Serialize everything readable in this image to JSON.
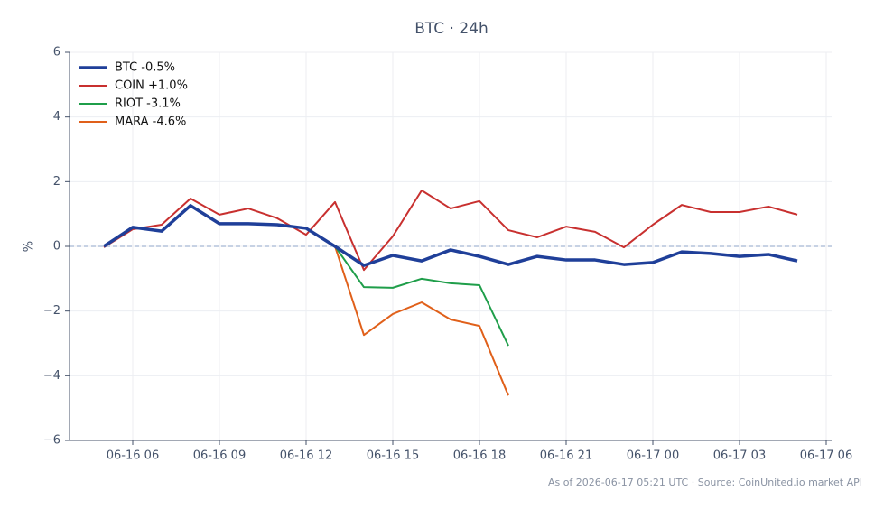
{
  "chart_data": {
    "type": "line",
    "title": "BTC · 24h",
    "ylabel": "%",
    "footnote": "As of 2026-06-17 05:21 UTC · Source: CoinUnited.io market API",
    "x": [
      "06-16 05",
      "06-16 06",
      "06-16 07",
      "06-16 08",
      "06-16 09",
      "06-16 10",
      "06-16 11",
      "06-16 12",
      "06-16 13",
      "06-16 14",
      "06-16 15",
      "06-16 16",
      "06-16 17",
      "06-16 18",
      "06-16 19",
      "06-16 20",
      "06-16 21",
      "06-16 22",
      "06-16 23",
      "06-17 00",
      "06-17 01",
      "06-17 02",
      "06-17 03",
      "06-17 04",
      "06-17 05"
    ],
    "xticks": [
      "06-16 06",
      "06-16 09",
      "06-16 12",
      "06-16 15",
      "06-16 18",
      "06-16 21",
      "06-17 00",
      "06-17 03",
      "06-17 06"
    ],
    "series": [
      {
        "name": "BTC -0.5%",
        "color": "#1f3f99",
        "values": [
          0,
          0.59,
          0.47,
          1.26,
          0.7,
          0.7,
          0.67,
          0.56,
          0,
          -0.59,
          -0.28,
          -0.45,
          -0.11,
          -0.31,
          -0.56,
          -0.31,
          -0.42,
          -0.42,
          -0.56,
          -0.5,
          -0.17,
          -0.22,
          -0.31,
          -0.25,
          -0.45
        ]
      },
      {
        "name": "COIN +1.0%",
        "color": "#c8302f",
        "values": [
          -0.03,
          0.53,
          0.67,
          1.48,
          0.98,
          1.17,
          0.87,
          0.36,
          1.37,
          -0.73,
          0.31,
          1.73,
          1.17,
          1.4,
          0.5,
          0.28,
          0.61,
          0.45,
          -0.03,
          0.67,
          1.28,
          1.06,
          1.06,
          1.23,
          0.98
        ]
      },
      {
        "name": "RIOT -3.1%",
        "color": "#1f9e4a",
        "values": [
          null,
          null,
          null,
          null,
          null,
          null,
          null,
          null,
          0,
          -1.26,
          -1.28,
          -1.0,
          -1.14,
          -1.2,
          -3.07,
          null,
          null,
          null,
          null,
          null,
          null,
          null,
          null,
          null,
          null
        ]
      },
      {
        "name": "MARA -4.6%",
        "color": "#e0601a",
        "values": [
          null,
          null,
          null,
          null,
          null,
          null,
          null,
          null,
          0,
          -2.74,
          -2.09,
          -1.73,
          -2.26,
          -2.46,
          -4.61,
          null,
          null,
          null,
          null,
          null,
          null,
          null,
          null,
          null,
          null
        ]
      }
    ],
    "ylim": [
      -6,
      6
    ],
    "yticks": [
      {
        "value": -6,
        "label": "−6"
      },
      {
        "value": -4,
        "label": "−4"
      },
      {
        "value": -2,
        "label": "−2"
      },
      0,
      2,
      4,
      6
    ],
    "grid": true,
    "zero_line": true,
    "legend": "upper left"
  }
}
